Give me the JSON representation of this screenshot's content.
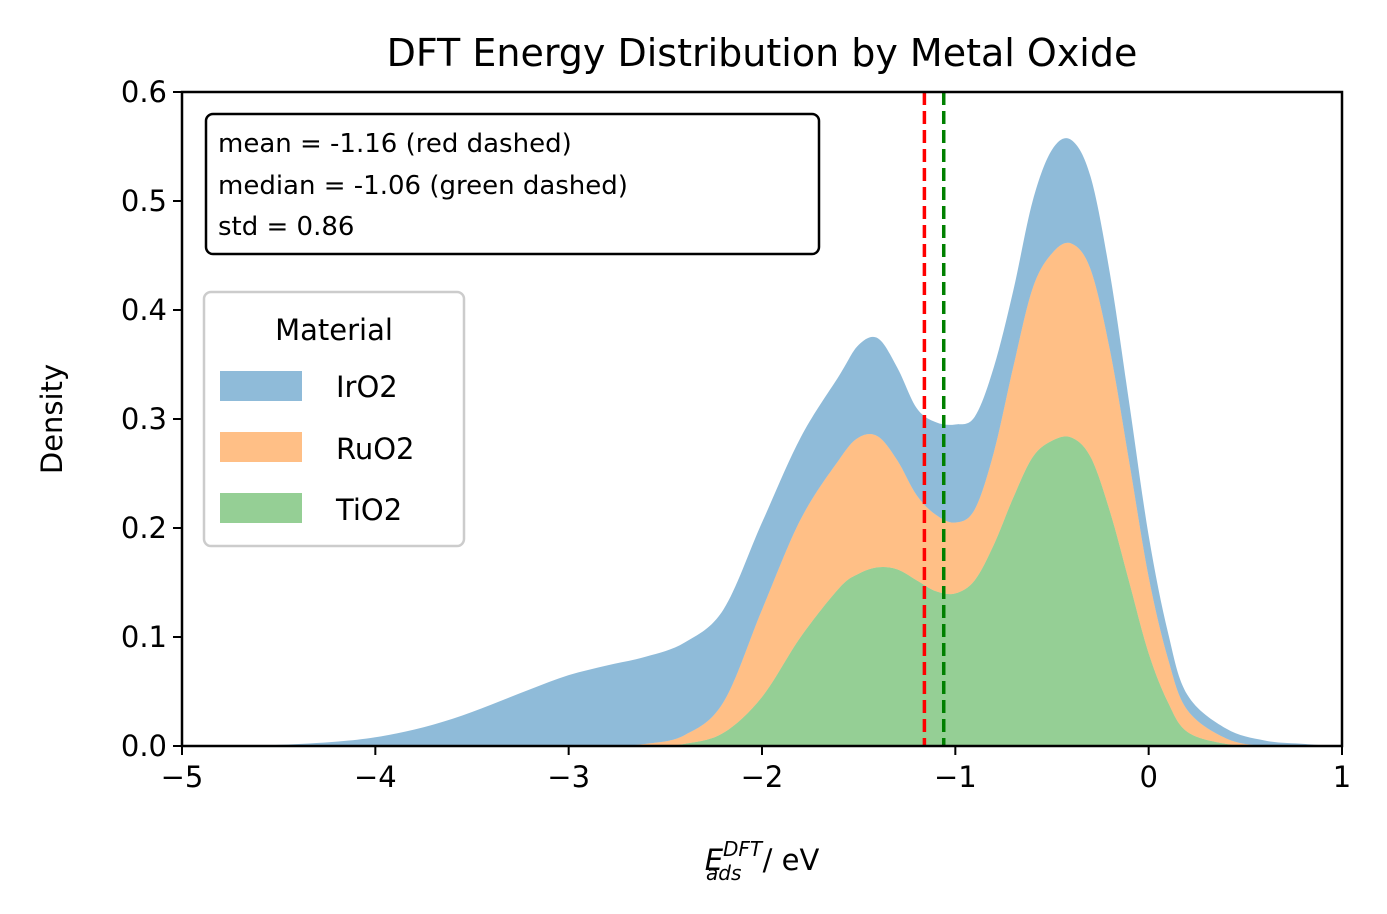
{
  "chart_data": {
    "type": "area",
    "title": "DFT Energy Distribution by Metal Oxide",
    "xlabel": {
      "base": "E",
      "sup": "DFT",
      "sub": "ads",
      "unit": " / eV"
    },
    "ylabel": "Density",
    "xlim": [
      -5,
      1
    ],
    "ylim": [
      0,
      0.6
    ],
    "stacked": true,
    "x_ticks": [
      -5,
      -4,
      -3,
      -2,
      -1,
      0,
      1
    ],
    "x_tick_labels": [
      "−5",
      "−4",
      "−3",
      "−2",
      "−1",
      "0",
      "1"
    ],
    "y_ticks": [
      0.0,
      0.1,
      0.2,
      0.3,
      0.4,
      0.5,
      0.6
    ],
    "y_tick_labels": [
      "0.0",
      "0.1",
      "0.2",
      "0.3",
      "0.4",
      "0.5",
      "0.6"
    ],
    "x": [
      -4.8,
      -4.5,
      -4.2,
      -4.0,
      -3.8,
      -3.6,
      -3.4,
      -3.2,
      -3.0,
      -2.8,
      -2.6,
      -2.4,
      -2.2,
      -2.0,
      -1.8,
      -1.6,
      -1.5,
      -1.4,
      -1.3,
      -1.2,
      -1.1,
      -1.0,
      -0.9,
      -0.8,
      -0.7,
      -0.6,
      -0.5,
      -0.4,
      -0.3,
      -0.2,
      -0.1,
      0.0,
      0.1,
      0.2,
      0.4,
      0.6,
      0.8,
      0.95
    ],
    "series": [
      {
        "name": "TiO2",
        "color": "#2ca02c",
        "values": [
          0,
          0,
          0,
          0,
          0,
          0,
          0,
          0,
          0,
          0,
          0,
          0.002,
          0.012,
          0.045,
          0.1,
          0.145,
          0.158,
          0.164,
          0.162,
          0.152,
          0.142,
          0.14,
          0.152,
          0.185,
          0.228,
          0.265,
          0.28,
          0.283,
          0.265,
          0.215,
          0.15,
          0.085,
          0.04,
          0.013,
          0.002,
          0,
          0,
          0
        ]
      },
      {
        "name": "RuO2",
        "color": "#ff7f0e",
        "values": [
          0,
          0,
          0,
          0,
          0,
          0,
          0,
          0,
          0,
          0,
          0.002,
          0.008,
          0.028,
          0.08,
          0.108,
          0.118,
          0.125,
          0.12,
          0.1,
          0.078,
          0.07,
          0.065,
          0.065,
          0.085,
          0.12,
          0.155,
          0.172,
          0.178,
          0.172,
          0.148,
          0.11,
          0.07,
          0.04,
          0.02,
          0.005,
          0,
          0,
          0
        ]
      },
      {
        "name": "IrO2",
        "color": "#1f77b4",
        "values": [
          0,
          0.001,
          0.004,
          0.008,
          0.015,
          0.025,
          0.038,
          0.052,
          0.065,
          0.074,
          0.08,
          0.085,
          0.085,
          0.08,
          0.075,
          0.077,
          0.085,
          0.09,
          0.085,
          0.08,
          0.085,
          0.09,
          0.085,
          0.078,
          0.07,
          0.08,
          0.095,
          0.095,
          0.085,
          0.07,
          0.054,
          0.038,
          0.024,
          0.014,
          0.009,
          0.005,
          0.002,
          0
        ]
      }
    ],
    "legend_order": [
      "IrO2",
      "RuO2",
      "TiO2"
    ],
    "legend_title": "Material",
    "legend_position": "center-left",
    "vlines": [
      {
        "x": -1.16,
        "color": "#ff0000",
        "style": "dashed"
      },
      {
        "x": -1.06,
        "color": "#008000",
        "style": "dashed"
      }
    ],
    "annotation_lines": [
      "mean = -1.16 (red dashed)",
      "median = -1.06 (green dashed)",
      "std = 0.86"
    ],
    "annotation_position": "top-left",
    "grid": false
  }
}
